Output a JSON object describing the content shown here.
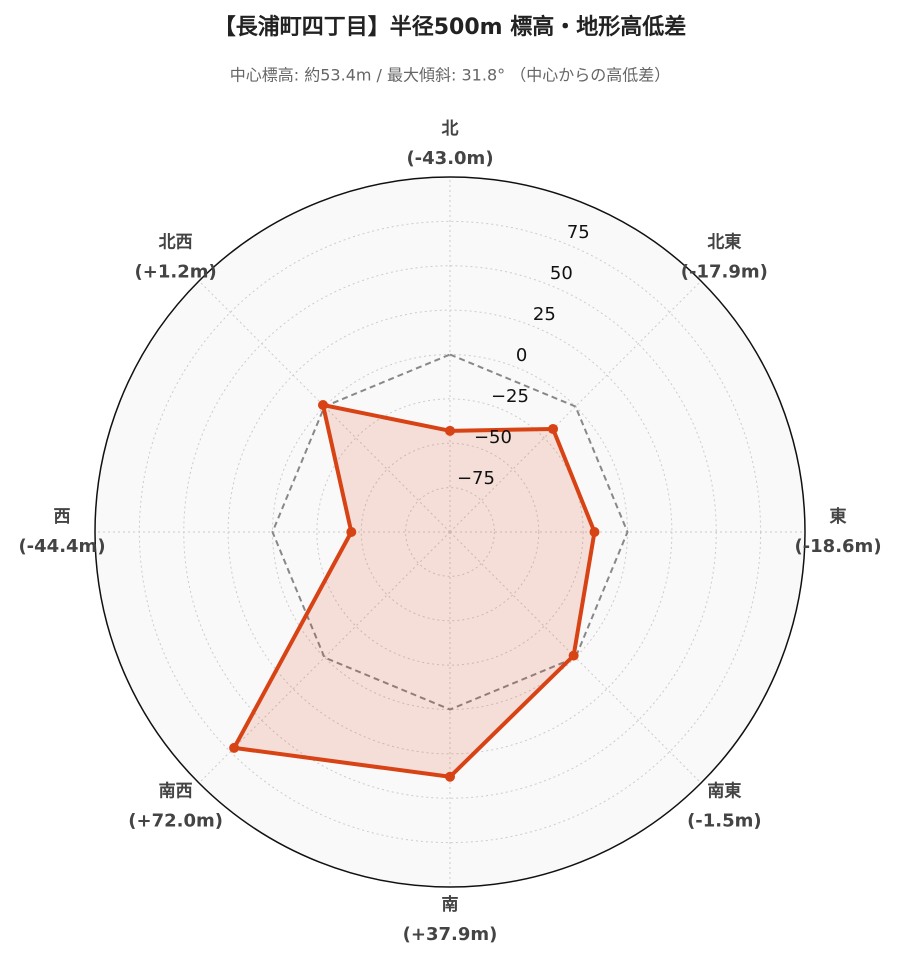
{
  "chart_data": {
    "type": "radar",
    "title": "【長浦町四丁目】半径500m 標高・地形高低差",
    "subtitle": "中心標高: 約53.4m / 最大傾斜: 31.8° （中心からの高低差）",
    "categories": [
      "北",
      "北東",
      "東",
      "南東",
      "南",
      "南西",
      "西",
      "北西"
    ],
    "values": [
      -43.0,
      -17.9,
      -18.6,
      -1.5,
      37.9,
      72.0,
      -44.4,
      1.2
    ],
    "value_labels": [
      "(-43.0m)",
      "(-17.9m)",
      "(-18.6m)",
      "(-1.5m)",
      "(+37.9m)",
      "(+72.0m)",
      "(-44.4m)",
      "(+1.2m)"
    ],
    "color": "#d84315",
    "rlim": [
      -100,
      100
    ],
    "rticks": [
      {
        "value": -75,
        "label": "−75"
      },
      {
        "value": -50,
        "label": "−50"
      },
      {
        "value": -25,
        "label": "−25"
      },
      0,
      25,
      50,
      75
    ],
    "grid": true
  }
}
